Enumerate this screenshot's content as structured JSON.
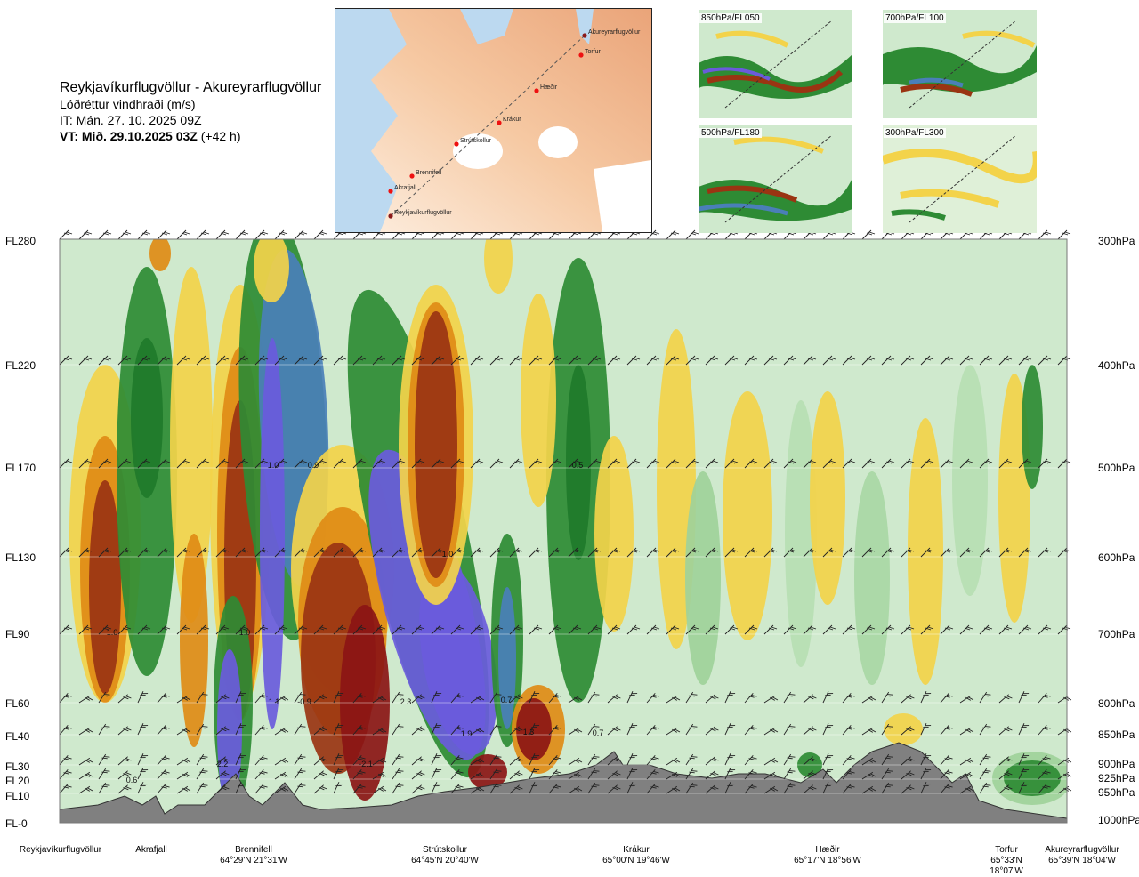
{
  "header": {
    "route": "Reykjavíkurflugvöllur - Akureyrarflugvöllur",
    "variable": "Lóðréttur vindhraði (m/s)",
    "it": "IT: Mán. 27. 10. 2025 09Z",
    "vt_label": "VT: Mið. 29.10.2025 03Z",
    "vt_offset": "(+42 h)"
  },
  "map": {
    "points": [
      "Akureyrarflugvöllur",
      "Torfur",
      "Hæðir",
      "Krákur",
      "Strútskollur",
      "Brennifell",
      "Akrafjall",
      "Reykjavíkurflugvöllur"
    ]
  },
  "thumbnails": [
    {
      "label": "850hPa/FL050"
    },
    {
      "label": "700hPa/FL100"
    },
    {
      "label": "500hPa/FL180"
    },
    {
      "label": "300hPa/FL300"
    }
  ],
  "colors": {
    "strong_up": "#9a3412",
    "up_orange": "#e08b16",
    "up_yellow": "#f3d34a",
    "weak": "#cfe9cd",
    "down_green": "#2e8b34",
    "down_blue": "#4a7fb8",
    "down_purple": "#6a5bdc",
    "terrain": "#808080"
  },
  "chart_data": {
    "type": "heatmap",
    "title": "Lóðréttur vindhraði (m/s)",
    "y_flight_levels": [
      {
        "label": "FL280",
        "hpa": "300hPa"
      },
      {
        "label": "FL220",
        "hpa": "400hPa"
      },
      {
        "label": "FL170",
        "hpa": "500hPa"
      },
      {
        "label": "FL130",
        "hpa": "600hPa"
      },
      {
        "label": "FL90",
        "hpa": "700hPa"
      },
      {
        "label": "FL60",
        "hpa": "800hPa"
      },
      {
        "label": "FL40",
        "hpa": "850hPa"
      },
      {
        "label": "FL30",
        "hpa": "900hPa"
      },
      {
        "label": "FL20",
        "hpa": "925hPa"
      },
      {
        "label": "FL10",
        "hpa": "950hPa"
      },
      {
        "label": "FL-0",
        "hpa": "1000hPa"
      }
    ],
    "waypoints": [
      {
        "name": "Reykjavíkurflugvöllur",
        "coord": ""
      },
      {
        "name": "Akrafjall",
        "coord": ""
      },
      {
        "name": "Brennifell",
        "coord": "64°29'N 21°31'W"
      },
      {
        "name": "Strútskollur",
        "coord": "64°45'N 20°40'W"
      },
      {
        "name": "Krákur",
        "coord": "65°00'N 19°46'W"
      },
      {
        "name": "Hæðir",
        "coord": "65°17'N 18°56'W"
      },
      {
        "name": "Torfur",
        "coord": "65°33'N 18°07'W"
      },
      {
        "name": "Akureyrarflugvöllur",
        "coord": "65°39'N 18°04'W"
      }
    ],
    "annotations": [
      {
        "text": "1.0",
        "loc": "Reykjavík-Akrafjall, FL90"
      },
      {
        "text": "0.6",
        "loc": "Akrafjall, FL10"
      },
      {
        "text": "1.0",
        "loc": "Brennifell, FL90"
      },
      {
        "text": "2.2",
        "loc": "Brennifell, FL30"
      },
      {
        "text": "1.0",
        "loc": "east of Brennifell, FL170"
      },
      {
        "text": "0.9",
        "loc": "east of Brennifell, FL170"
      },
      {
        "text": "1.1",
        "loc": "east of Brennifell, FL60"
      },
      {
        "text": "-0.9",
        "loc": "east of Brennifell, FL60"
      },
      {
        "text": "-2.1",
        "loc": "west of Strútskollur, FL30"
      },
      {
        "text": "2.3",
        "loc": "Strútskollur, FL60"
      },
      {
        "text": "1.0",
        "loc": "Strútskollur, FL130"
      },
      {
        "text": "1.9",
        "loc": "east of Strútskollur, FL40"
      },
      {
        "text": "0.7",
        "loc": "east of Strútskollur, FL60"
      },
      {
        "text": "1.3",
        "loc": "west of Krákur, FL40"
      },
      {
        "text": "0.5",
        "loc": "west of Krákur, FL170"
      },
      {
        "text": "0.7",
        "loc": "west of Krákur, FL40"
      }
    ]
  }
}
